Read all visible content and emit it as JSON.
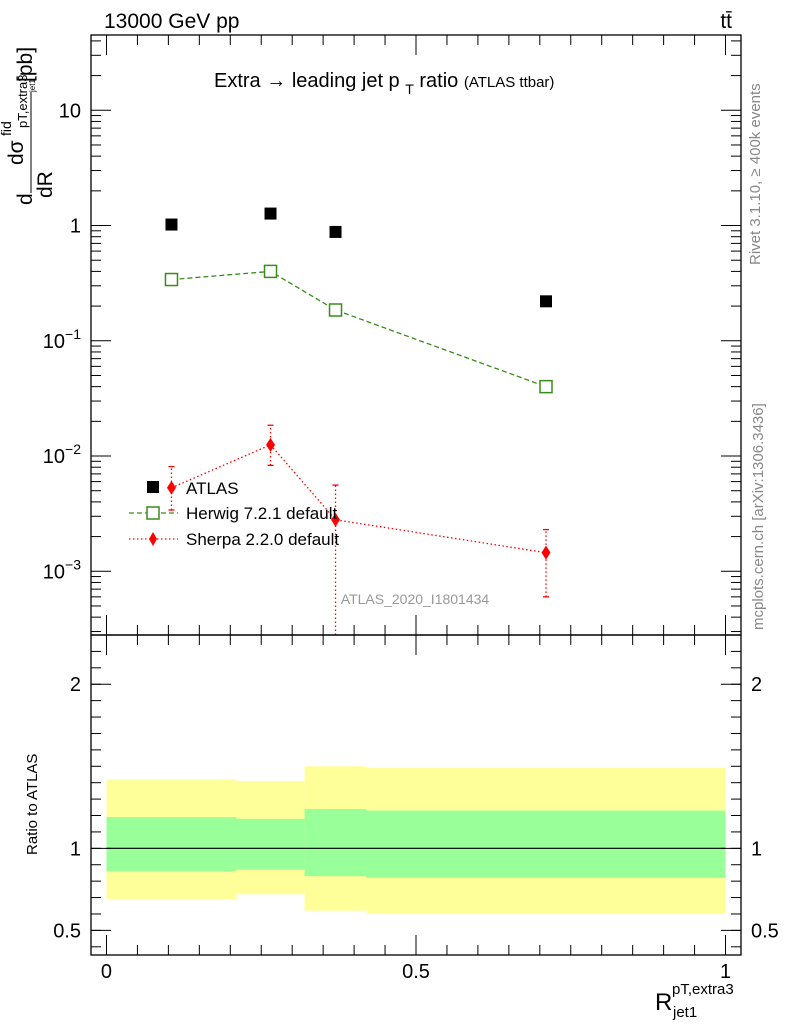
{
  "header": {
    "left": "13000 GeV pp",
    "right": "tt̄"
  },
  "side_labels": {
    "rivet": "Rivet 3.1.10, ≥ 400k events",
    "mcplots": "mcplots.cern.ch [arXiv:1306.3436]"
  },
  "chart_data": [
    {
      "type": "scatter",
      "panel": "main",
      "title": "Extra → leading jet p_T ratio",
      "title_main": "Extra",
      "title_arrow": "→",
      "title_mid": "leading jet p",
      "title_sub": "T",
      "title_end": "ratio",
      "title_note": "(ATLAS ttbar)",
      "ylabel": "dσ^fid/dR [pb]",
      "ylabel_d": "d",
      "ylabel_sigma": "dσ",
      "ylabel_sup": "fid",
      "ylabel_sub": "R^pT,extra3_jet1",
      "ylabel_sub_text": "pT,extra3",
      "ylabel_den": "dR",
      "ylabel_den_sub": "jet1",
      "ylabel_unit": "[pb]",
      "yscale": "log",
      "ylim": [
        0.00028,
        45
      ],
      "xlim": [
        -0.025,
        1.025
      ],
      "yticks": [
        {
          "value": 0.001,
          "base": "10",
          "exp": "−3"
        },
        {
          "value": 0.01,
          "base": "10",
          "exp": "−2"
        },
        {
          "value": 0.1,
          "base": "10",
          "exp": "−1"
        },
        {
          "value": 1,
          "base": "1",
          "exp": ""
        },
        {
          "value": 10,
          "base": "10",
          "exp": ""
        }
      ],
      "watermark": "ATLAS_2020_I1801434",
      "legend_position": "lower-left",
      "series": [
        {
          "name": "ATLAS",
          "marker": "filled-square",
          "color": "#000000",
          "x": [
            0.105,
            0.265,
            0.37,
            0.71
          ],
          "y": [
            1.02,
            1.27,
            0.88,
            0.22
          ]
        },
        {
          "name": "Herwig 7.2.1 default",
          "marker": "open-square",
          "line": "dashed",
          "color": "#3a8c1a",
          "x": [
            0.105,
            0.265,
            0.37,
            0.71
          ],
          "y": [
            0.34,
            0.4,
            0.185,
            0.04
          ]
        },
        {
          "name": "Sherpa 2.2.0 default",
          "marker": "diamond",
          "line": "dotted",
          "color": "#ff0000",
          "x": [
            0.105,
            0.265,
            0.37,
            0.71
          ],
          "y": [
            0.0053,
            0.0125,
            0.0028,
            0.00145
          ],
          "yerr_low": [
            0.0019,
            0.0042,
            0.00252,
            0.00085
          ],
          "yerr_high": [
            0.0028,
            0.006,
            0.0028,
            0.00085
          ]
        }
      ]
    },
    {
      "type": "area",
      "panel": "ratio",
      "ylabel": "Ratio to ATLAS",
      "xlabel": "R^pT,extra3_jet1",
      "xlabel_R": "R",
      "xlabel_sup": "pT,extra3",
      "xlabel_sub": "jet1",
      "ylim": [
        0.35,
        2.3
      ],
      "xlim": [
        -0.025,
        1.025
      ],
      "yticks": [
        0.5,
        1,
        2
      ],
      "yticklabels": [
        "0.5",
        "1",
        "2"
      ],
      "xticks": [
        0,
        0.5,
        1
      ],
      "xticklabels": [
        "0",
        "0.5",
        "1"
      ],
      "bins": [
        {
          "xlo": 0.0,
          "xhi": 0.21,
          "inner_lo": 0.86,
          "inner_hi": 1.19,
          "outer_lo": 0.69,
          "outer_hi": 1.42
        },
        {
          "xlo": 0.21,
          "xhi": 0.32,
          "inner_lo": 0.87,
          "inner_hi": 1.18,
          "outer_lo": 0.72,
          "outer_hi": 1.41
        },
        {
          "xlo": 0.32,
          "xhi": 0.42,
          "inner_lo": 0.83,
          "inner_hi": 1.24,
          "outer_lo": 0.62,
          "outer_hi": 1.5
        },
        {
          "xlo": 0.42,
          "xhi": 1.0,
          "inner_lo": 0.82,
          "inner_hi": 1.23,
          "outer_lo": 0.6,
          "outer_hi": 1.49
        }
      ],
      "inner_color": "#99ff99",
      "outer_color": "#ffff99"
    }
  ]
}
